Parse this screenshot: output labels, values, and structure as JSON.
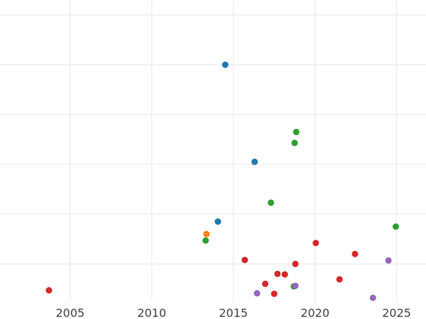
{
  "chart_data": {
    "type": "scatter",
    "title": "",
    "xlabel": "",
    "ylabel": "",
    "xlim": [
      2000.7,
      2026.8
    ],
    "ylim": [
      0.25,
      6.3
    ],
    "grid": true,
    "legend": "none",
    "x_ticks": [
      {
        "value": 2005,
        "label": "2005"
      },
      {
        "value": 2010,
        "label": "2010"
      },
      {
        "value": 2015,
        "label": "2015"
      },
      {
        "value": 2020,
        "label": "2020"
      },
      {
        "value": 2025,
        "label": "2025"
      }
    ],
    "y_gridlines": [
      1,
      2,
      3,
      4,
      5,
      6
    ],
    "series": [
      {
        "color": "#1f77b4",
        "points": [
          [
            2014.5,
            5.0
          ],
          [
            2016.3,
            3.05
          ],
          [
            2014.05,
            1.85
          ]
        ]
      },
      {
        "color": "#ff7f0e",
        "points": [
          [
            2013.35,
            1.6
          ]
        ]
      },
      {
        "color": "#2ca02c",
        "points": [
          [
            2018.85,
            3.65
          ],
          [
            2018.75,
            3.43
          ],
          [
            2017.3,
            2.23
          ],
          [
            2024.95,
            1.75
          ],
          [
            2013.3,
            1.47
          ],
          [
            2018.7,
            0.55
          ]
        ]
      },
      {
        "color": "#d62728",
        "points": [
          [
            2003.7,
            0.47
          ],
          [
            2015.7,
            1.08
          ],
          [
            2020.05,
            1.42
          ],
          [
            2022.45,
            1.2
          ],
          [
            2018.8,
            1.0
          ],
          [
            2017.7,
            0.8
          ],
          [
            2018.15,
            0.79
          ],
          [
            2016.95,
            0.6
          ],
          [
            2017.5,
            0.4
          ],
          [
            2021.5,
            0.69
          ]
        ]
      },
      {
        "color": "#9467bd",
        "points": [
          [
            2016.45,
            0.41
          ],
          [
            2018.8,
            0.56
          ],
          [
            2024.5,
            1.07
          ],
          [
            2023.55,
            0.32
          ]
        ]
      }
    ]
  }
}
